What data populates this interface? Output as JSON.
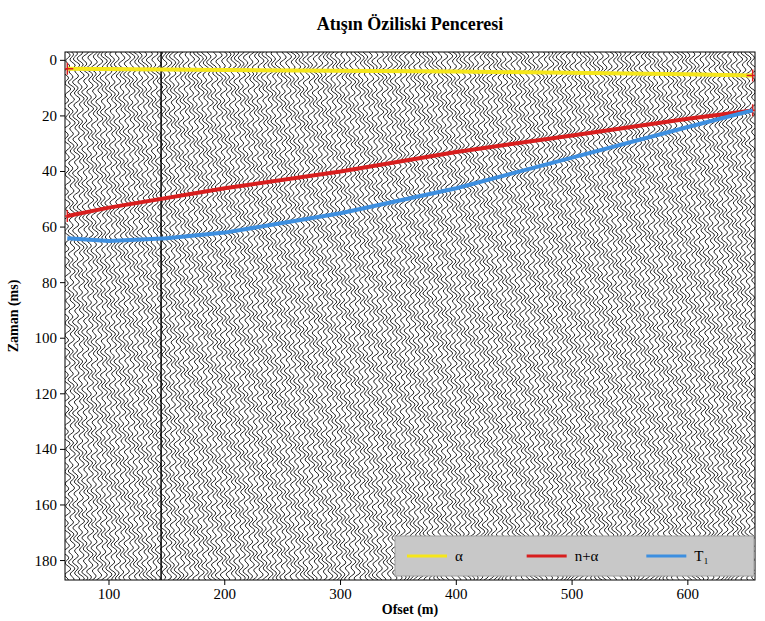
{
  "chart_data": {
    "type": "line",
    "title": "Atışın Öziliski Penceresi",
    "x_label": "Ofset (m)",
    "y_label": "Zaman (ms)",
    "xlim": [
      62,
      658
    ],
    "ylim": [
      -3,
      187
    ],
    "xticks": [
      100,
      200,
      300,
      400,
      500,
      600
    ],
    "yticks": [
      0,
      20,
      40,
      60,
      80,
      100,
      120,
      140,
      160,
      180
    ],
    "legend": "lower right",
    "series": [
      {
        "name": "α",
        "color": "#f5e61a",
        "marker": "plus",
        "x": [
          64,
          200,
          400,
          600,
          656
        ],
        "values": [
          3,
          3.5,
          4,
          5,
          5.5
        ]
      },
      {
        "name": "n+α",
        "color": "#d81e1e",
        "marker": "plus",
        "x": [
          64,
          100,
          200,
          300,
          400,
          500,
          600,
          656
        ],
        "values": [
          56,
          53,
          46,
          40,
          33,
          27,
          21,
          18
        ]
      },
      {
        "name": "T₁",
        "color": "#3d8fe0",
        "x": [
          64,
          100,
          150,
          200,
          300,
          400,
          500,
          600,
          656
        ],
        "values": [
          64,
          65,
          64,
          62,
          55,
          46,
          35,
          24,
          18
        ]
      }
    ]
  }
}
